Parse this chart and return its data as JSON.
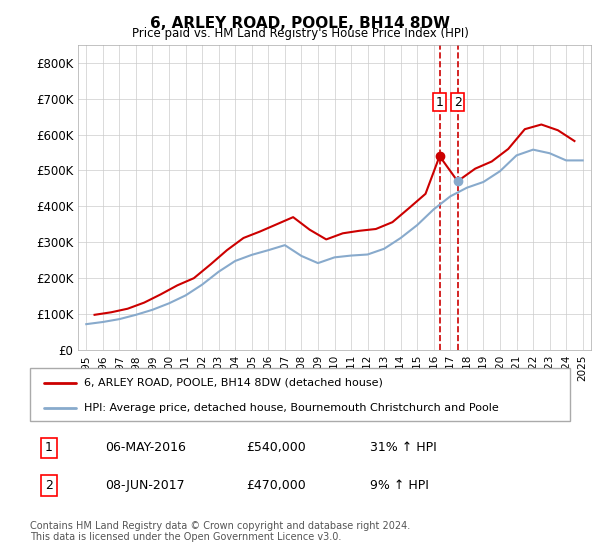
{
  "title": "6, ARLEY ROAD, POOLE, BH14 8DW",
  "subtitle": "Price paid vs. HM Land Registry's House Price Index (HPI)",
  "legend_line1": "6, ARLEY ROAD, POOLE, BH14 8DW (detached house)",
  "legend_line2": "HPI: Average price, detached house, Bournemouth Christchurch and Poole",
  "table_row1": [
    "1",
    "06-MAY-2016",
    "£540,000",
    "31% ↑ HPI"
  ],
  "table_row2": [
    "2",
    "08-JUN-2017",
    "£470,000",
    "9% ↑ HPI"
  ],
  "footer": "Contains HM Land Registry data © Crown copyright and database right 2024.\nThis data is licensed under the Open Government Licence v3.0.",
  "sale1_year": 2016.35,
  "sale1_price": 540000,
  "sale2_year": 2017.44,
  "sale2_price": 470000,
  "red_color": "#cc0000",
  "blue_color": "#88aacc",
  "dashed_color": "#cc0000",
  "years": [
    1995,
    1996,
    1997,
    1998,
    1999,
    2000,
    2001,
    2002,
    2003,
    2004,
    2005,
    2006,
    2007,
    2008,
    2009,
    2010,
    2011,
    2012,
    2013,
    2014,
    2015,
    2016,
    2017,
    2018,
    2019,
    2020,
    2021,
    2022,
    2023,
    2024,
    2025
  ],
  "hpi_values": [
    72000,
    78000,
    86000,
    98000,
    112000,
    130000,
    152000,
    182000,
    218000,
    248000,
    265000,
    278000,
    292000,
    262000,
    242000,
    258000,
    263000,
    266000,
    282000,
    312000,
    348000,
    392000,
    428000,
    452000,
    468000,
    498000,
    542000,
    558000,
    548000,
    528000,
    528000
  ],
  "property_values_x": [
    1995.5,
    1996.5,
    1997.5,
    1998.5,
    1999.5,
    2000.5,
    2001.5,
    2002.5,
    2003.5,
    2004.5,
    2005.5,
    2006.5,
    2007.5,
    2008.5,
    2009.5,
    2010.5,
    2011.5,
    2012.5,
    2013.5,
    2014.5,
    2015.5,
    2016.35,
    2017.44,
    2018.5,
    2019.5,
    2020.5,
    2021.5,
    2022.5,
    2023.5,
    2024.5
  ],
  "property_values_y": [
    98000,
    105000,
    115000,
    132000,
    155000,
    180000,
    200000,
    238000,
    278000,
    312000,
    330000,
    350000,
    370000,
    335000,
    308000,
    325000,
    332000,
    337000,
    356000,
    395000,
    435000,
    540000,
    470000,
    505000,
    525000,
    560000,
    615000,
    628000,
    612000,
    582000
  ],
  "ylim": [
    0,
    850000
  ],
  "xlim_min": 1994.5,
  "xlim_max": 2025.5
}
